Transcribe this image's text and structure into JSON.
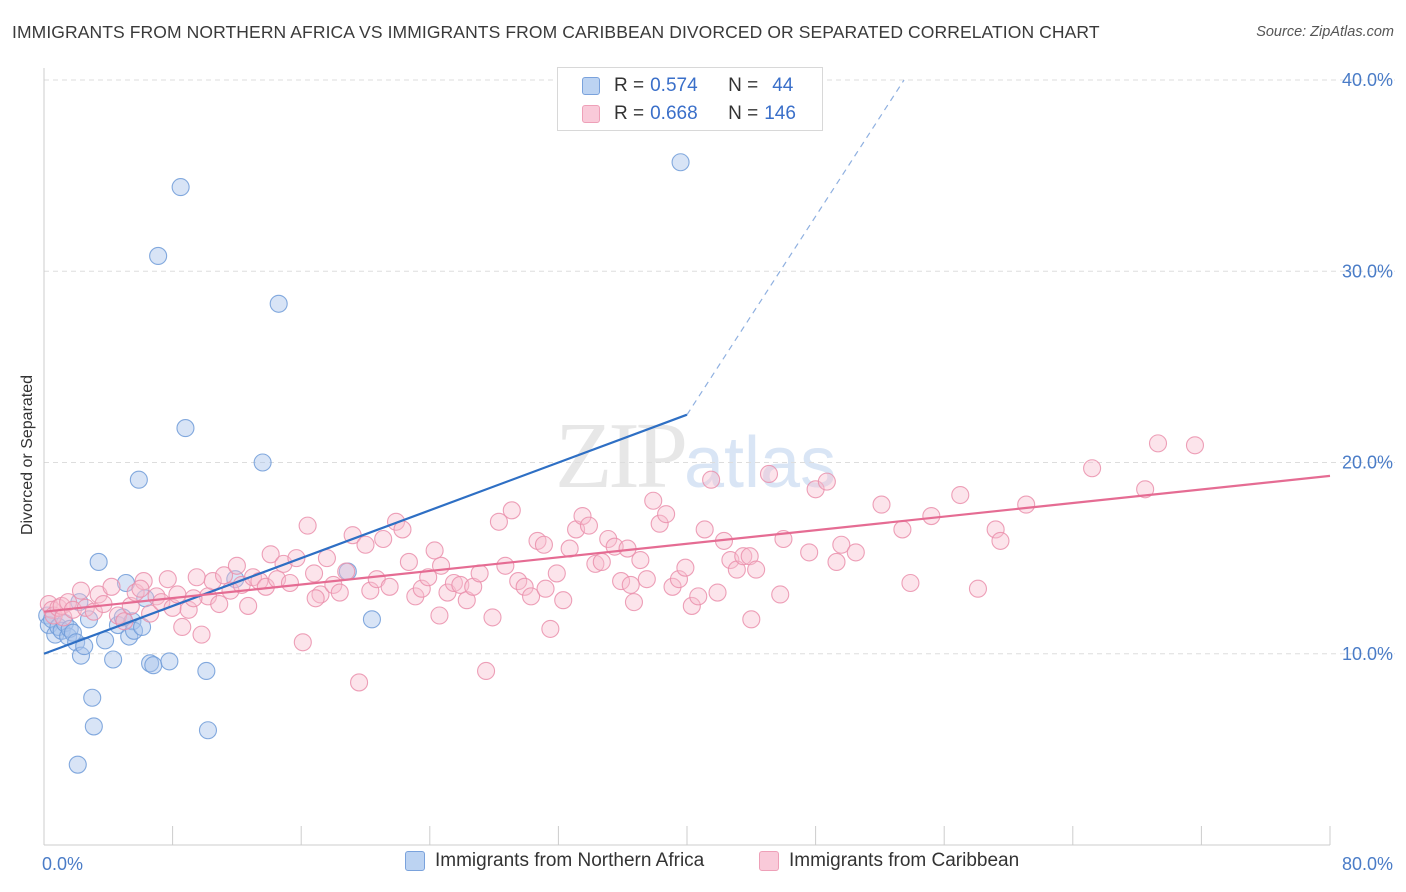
{
  "header": {
    "title": "IMMIGRANTS FROM NORTHERN AFRICA VS IMMIGRANTS FROM CARIBBEAN DIVORCED OR SEPARATED CORRELATION CHART",
    "source": "Source: ZipAtlas.com"
  },
  "legend": {
    "r_label": "R =",
    "n_label": "N =",
    "rows": [
      {
        "r": "0.574",
        "n": "44",
        "color": "#a9c4ec",
        "stroke": "#6e9bd8"
      },
      {
        "r": "0.668",
        "n": "146",
        "color": "#f7bfd0",
        "stroke": "#ea8fac"
      }
    ]
  },
  "bottom_legend": [
    {
      "label": "Immigrants from Northern Africa",
      "color": "#bcd3f2",
      "stroke": "#7aa2dc"
    },
    {
      "label": "Immigrants from Caribbean",
      "color": "#f9cad9",
      "stroke": "#eea0b8"
    }
  ],
  "watermark": {
    "zip": "ZIP",
    "atlas": "atlas"
  },
  "chart_data": {
    "type": "scatter",
    "title": "IMMIGRANTS FROM NORTHERN AFRICA VS IMMIGRANTS FROM CARIBBEAN DIVORCED OR SEPARATED CORRELATION CHART",
    "xlabel": "",
    "ylabel": "Divorced or Separated",
    "xlim": [
      0,
      80
    ],
    "ylim": [
      0,
      40
    ],
    "x_tick_labels": [
      "0.0%",
      "80.0%"
    ],
    "y_ticks": [
      10,
      20,
      30,
      40
    ],
    "y_tick_labels": [
      "10.0%",
      "20.0%",
      "30.0%",
      "40.0%"
    ],
    "grid": true,
    "legend_position": "top-center",
    "series": [
      {
        "name": "Immigrants from Northern Africa",
        "color": "#6e9bd8",
        "line_color": "#2e6fc4",
        "R": 0.574,
        "N": 44,
        "trend": {
          "x0": 0,
          "y0": 10.0,
          "x1": 40,
          "y1": 22.5,
          "dash_to_x": 53.5,
          "dash_to_y": 40.0
        },
        "points": [
          [
            0.2,
            12.0
          ],
          [
            0.3,
            11.5
          ],
          [
            0.5,
            11.8
          ],
          [
            0.7,
            11.0
          ],
          [
            0.9,
            11.4
          ],
          [
            1.1,
            11.2
          ],
          [
            1.3,
            11.6
          ],
          [
            1.5,
            10.9
          ],
          [
            1.6,
            11.3
          ],
          [
            1.8,
            11.1
          ],
          [
            2.0,
            10.6
          ],
          [
            2.2,
            12.7
          ],
          [
            2.3,
            9.9
          ],
          [
            2.5,
            10.4
          ],
          [
            2.8,
            11.8
          ],
          [
            3.0,
            7.7
          ],
          [
            3.1,
            6.2
          ],
          [
            3.4,
            14.8
          ],
          [
            3.8,
            10.7
          ],
          [
            4.3,
            9.7
          ],
          [
            4.6,
            11.5
          ],
          [
            4.9,
            11.9
          ],
          [
            5.1,
            13.7
          ],
          [
            5.3,
            10.9
          ],
          [
            5.5,
            11.7
          ],
          [
            5.6,
            11.2
          ],
          [
            5.9,
            19.1
          ],
          [
            6.1,
            11.4
          ],
          [
            6.3,
            12.9
          ],
          [
            6.6,
            9.5
          ],
          [
            6.8,
            9.4
          ],
          [
            7.1,
            30.8
          ],
          [
            7.8,
            9.6
          ],
          [
            8.5,
            34.4
          ],
          [
            8.8,
            21.8
          ],
          [
            10.1,
            9.1
          ],
          [
            10.2,
            6.0
          ],
          [
            11.9,
            13.9
          ],
          [
            13.6,
            20.0
          ],
          [
            14.6,
            28.3
          ],
          [
            18.9,
            14.3
          ],
          [
            20.4,
            11.8
          ],
          [
            2.1,
            4.2
          ],
          [
            39.6,
            35.7
          ]
        ]
      },
      {
        "name": "Immigrants from Caribbean",
        "color": "#ea8fac",
        "line_color": "#e56c93",
        "R": 0.668,
        "N": 146,
        "trend": {
          "x0": 0,
          "y0": 12.2,
          "x1": 80,
          "y1": 19.3
        },
        "points": [
          [
            0.3,
            12.6
          ],
          [
            0.5,
            12.3
          ],
          [
            0.6,
            12.0
          ],
          [
            0.9,
            12.4
          ],
          [
            1.1,
            12.5
          ],
          [
            1.2,
            11.9
          ],
          [
            1.5,
            12.7
          ],
          [
            1.8,
            12.3
          ],
          [
            2.3,
            13.3
          ],
          [
            2.6,
            12.4
          ],
          [
            3.1,
            12.2
          ],
          [
            3.4,
            13.1
          ],
          [
            3.7,
            12.6
          ],
          [
            4.2,
            13.5
          ],
          [
            4.6,
            12.0
          ],
          [
            5.0,
            11.7
          ],
          [
            5.4,
            12.5
          ],
          [
            5.7,
            13.2
          ],
          [
            6.2,
            13.8
          ],
          [
            6.6,
            12.1
          ],
          [
            7.0,
            13.0
          ],
          [
            7.3,
            12.7
          ],
          [
            7.7,
            13.9
          ],
          [
            8.0,
            12.4
          ],
          [
            8.3,
            13.1
          ],
          [
            8.6,
            11.4
          ],
          [
            9.0,
            12.3
          ],
          [
            9.5,
            14.0
          ],
          [
            9.8,
            11.0
          ],
          [
            10.2,
            13.0
          ],
          [
            10.5,
            13.8
          ],
          [
            10.9,
            12.6
          ],
          [
            11.2,
            14.1
          ],
          [
            11.6,
            13.3
          ],
          [
            12.0,
            14.6
          ],
          [
            12.3,
            13.6
          ],
          [
            12.7,
            12.5
          ],
          [
            13.0,
            14.0
          ],
          [
            13.4,
            13.8
          ],
          [
            13.8,
            13.5
          ],
          [
            14.1,
            15.2
          ],
          [
            14.5,
            13.9
          ],
          [
            14.9,
            14.7
          ],
          [
            15.3,
            13.7
          ],
          [
            15.7,
            15.0
          ],
          [
            16.1,
            10.6
          ],
          [
            16.4,
            16.7
          ],
          [
            16.8,
            14.2
          ],
          [
            17.2,
            13.1
          ],
          [
            17.6,
            15.0
          ],
          [
            18.0,
            13.6
          ],
          [
            18.4,
            13.2
          ],
          [
            18.8,
            14.3
          ],
          [
            19.2,
            16.2
          ],
          [
            19.6,
            8.5
          ],
          [
            20.0,
            15.7
          ],
          [
            20.3,
            13.3
          ],
          [
            20.7,
            13.9
          ],
          [
            21.1,
            16.0
          ],
          [
            21.5,
            13.5
          ],
          [
            21.9,
            16.9
          ],
          [
            22.3,
            16.5
          ],
          [
            22.7,
            14.8
          ],
          [
            23.1,
            13.0
          ],
          [
            23.5,
            13.4
          ],
          [
            23.9,
            14.0
          ],
          [
            24.3,
            15.4
          ],
          [
            24.7,
            14.6
          ],
          [
            25.1,
            13.2
          ],
          [
            25.5,
            13.7
          ],
          [
            25.9,
            13.6
          ],
          [
            26.3,
            12.8
          ],
          [
            26.7,
            13.5
          ],
          [
            27.1,
            14.2
          ],
          [
            27.5,
            9.1
          ],
          [
            27.9,
            11.9
          ],
          [
            28.3,
            16.9
          ],
          [
            28.7,
            14.6
          ],
          [
            29.1,
            17.5
          ],
          [
            29.5,
            13.8
          ],
          [
            29.9,
            13.5
          ],
          [
            30.3,
            13.0
          ],
          [
            30.7,
            15.9
          ],
          [
            31.1,
            15.7
          ],
          [
            31.5,
            11.3
          ],
          [
            31.9,
            14.2
          ],
          [
            32.3,
            12.8
          ],
          [
            32.7,
            15.5
          ],
          [
            33.1,
            16.5
          ],
          [
            33.5,
            17.2
          ],
          [
            33.9,
            16.7
          ],
          [
            34.3,
            14.7
          ],
          [
            34.7,
            14.8
          ],
          [
            35.1,
            16.0
          ],
          [
            35.5,
            15.6
          ],
          [
            35.9,
            13.8
          ],
          [
            36.3,
            15.5
          ],
          [
            36.7,
            12.7
          ],
          [
            37.1,
            14.9
          ],
          [
            37.5,
            13.9
          ],
          [
            37.9,
            18.0
          ],
          [
            38.3,
            16.8
          ],
          [
            38.7,
            17.3
          ],
          [
            39.1,
            13.5
          ],
          [
            39.5,
            13.9
          ],
          [
            39.9,
            14.5
          ],
          [
            40.3,
            12.5
          ],
          [
            40.7,
            13.0
          ],
          [
            41.1,
            16.5
          ],
          [
            41.5,
            19.1
          ],
          [
            41.9,
            13.2
          ],
          [
            42.3,
            15.9
          ],
          [
            42.7,
            14.9
          ],
          [
            43.1,
            14.4
          ],
          [
            43.5,
            15.1
          ],
          [
            43.9,
            15.1
          ],
          [
            44.3,
            14.4
          ],
          [
            45.1,
            19.4
          ],
          [
            46.0,
            16.0
          ],
          [
            47.6,
            15.3
          ],
          [
            48.0,
            18.6
          ],
          [
            48.7,
            19.0
          ],
          [
            49.3,
            14.8
          ],
          [
            49.6,
            15.7
          ],
          [
            50.5,
            15.3
          ],
          [
            52.1,
            17.8
          ],
          [
            53.4,
            16.5
          ],
          [
            55.2,
            17.2
          ],
          [
            57.0,
            18.3
          ],
          [
            58.1,
            13.4
          ],
          [
            59.2,
            16.5
          ],
          [
            59.5,
            15.9
          ],
          [
            61.1,
            17.8
          ],
          [
            65.2,
            19.7
          ],
          [
            68.5,
            18.6
          ],
          [
            69.3,
            21.0
          ],
          [
            71.6,
            20.9
          ],
          [
            53.9,
            13.7
          ],
          [
            45.8,
            13.1
          ],
          [
            44.0,
            11.8
          ],
          [
            6.0,
            13.4
          ],
          [
            9.3,
            12.9
          ],
          [
            16.9,
            12.9
          ],
          [
            24.6,
            12.0
          ],
          [
            31.2,
            13.4
          ],
          [
            36.5,
            13.6
          ]
        ]
      }
    ]
  }
}
